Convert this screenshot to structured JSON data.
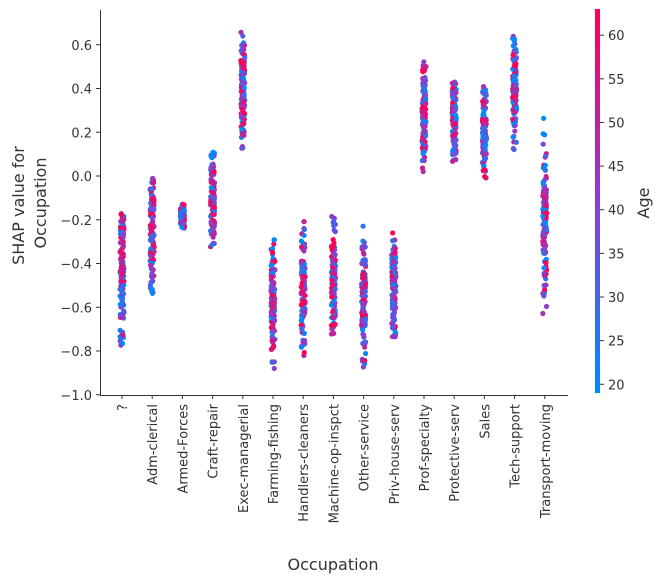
{
  "chart_data": {
    "type": "scatter",
    "xlabel": "Occupation",
    "ylabel": [
      "SHAP value for",
      "Occupation"
    ],
    "ylim": [
      -1.0,
      0.76
    ],
    "yticks": [
      "0.6",
      "0.4",
      "0.2",
      "0.0",
      "−0.2",
      "−0.4",
      "−0.6",
      "−0.8",
      "−1.0"
    ],
    "ytick_values": [
      0.6,
      0.4,
      0.2,
      0.0,
      -0.2,
      -0.4,
      -0.6,
      -0.8,
      -1.0
    ],
    "categories": [
      "?",
      "Adm-clerical",
      "Armed-Forces",
      "Craft-repair",
      "Exec-managerial",
      "Farming-fishing",
      "Handlers-cleaners",
      "Machine-op-inspct",
      "Other-service",
      "Priv-house-serv",
      "Prof-specialty",
      "Protective-serv",
      "Sales",
      "Tech-support",
      "Transport-moving"
    ],
    "shap_ranges": [
      [
        -0.8,
        -0.11
      ],
      [
        -0.6,
        0.1
      ],
      [
        -0.25,
        -0.12
      ],
      [
        -0.36,
        0.15
      ],
      [
        0.1,
        0.68
      ],
      [
        -0.9,
        -0.26
      ],
      [
        -0.85,
        -0.18
      ],
      [
        -0.8,
        -0.16
      ],
      [
        -0.92,
        -0.21
      ],
      [
        -0.78,
        -0.22
      ],
      [
        0.01,
        0.55
      ],
      [
        0.03,
        0.47
      ],
      [
        -0.07,
        0.46
      ],
      [
        0.1,
        0.68
      ],
      [
        -0.67,
        0.29
      ]
    ],
    "grid": false,
    "colorbar": {
      "label": "Age",
      "range": [
        19,
        63
      ],
      "ticks": [
        "60",
        "55",
        "50",
        "45",
        "40",
        "35",
        "30",
        "25",
        "20"
      ],
      "tick_values": [
        60,
        55,
        50,
        45,
        40,
        35,
        30,
        25,
        20
      ],
      "colors": {
        "low": "#008bfb",
        "mid": "#8a3fd0",
        "high": "#ff0051"
      }
    }
  }
}
